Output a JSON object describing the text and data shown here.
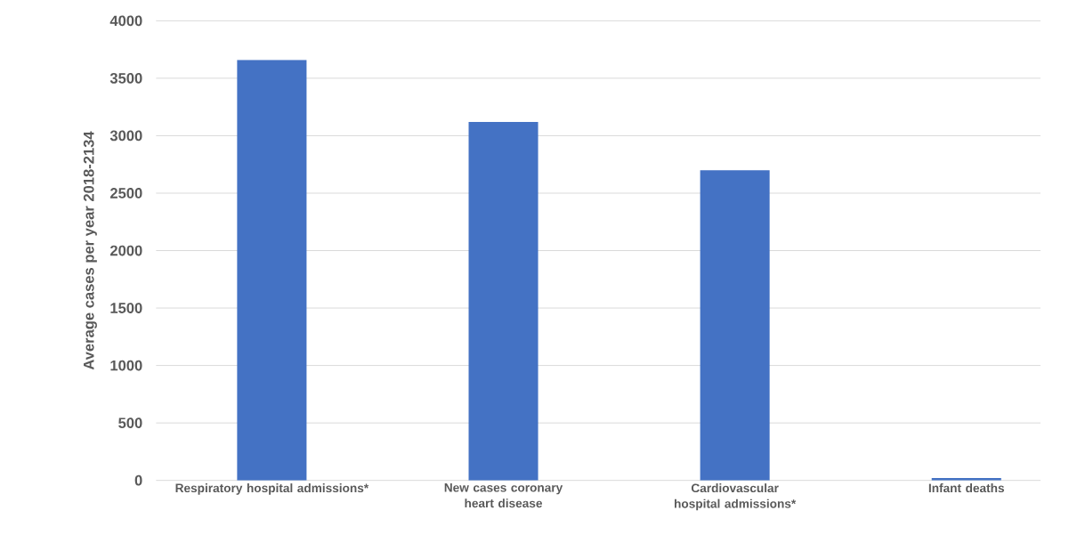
{
  "chart_data": {
    "type": "bar",
    "ylabel": "Average cases per year 2018-2134",
    "categories": [
      "Respiratory hospital admissions*",
      "New cases coronary heart disease",
      "Cardiovascular hospital admissions*",
      "Infant deaths"
    ],
    "values": [
      3660,
      3120,
      2700,
      20
    ],
    "color": "#4472c4",
    "ylim": [
      0,
      4000
    ],
    "yticks": [
      0,
      500,
      1000,
      1500,
      2000,
      2500,
      3000,
      3500,
      4000
    ],
    "grid": "y"
  }
}
